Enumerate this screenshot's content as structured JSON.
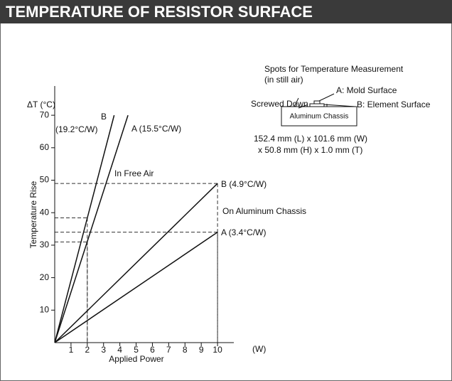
{
  "chart_data": {
    "type": "line",
    "title": "TEMPERATURE OF RESISTOR SURFACE",
    "x_label": "Applied Power",
    "x_unit": "(W)",
    "y_label": "Temperature Rise",
    "y_unit": "ΔT (°C)",
    "xlim": [
      0,
      11
    ],
    "ylim": [
      0,
      79
    ],
    "xticks": [
      1,
      2,
      3,
      4,
      5,
      6,
      7,
      8,
      9,
      10
    ],
    "yticks": [
      10,
      20,
      30,
      40,
      50,
      60,
      70
    ],
    "color": "#111111",
    "series": [
      {
        "label": [
          "B",
          "(19.2°C/W)"
        ],
        "x": [
          0,
          3.65
        ],
        "values": [
          0,
          70
        ]
      },
      {
        "label": [
          "A (15.5°C/W)"
        ],
        "x": [
          0,
          4.5
        ],
        "values": [
          0,
          70
        ]
      },
      {
        "label": [
          "B (4.9°C/W)"
        ],
        "x": [
          0,
          10
        ],
        "values": [
          0,
          49
        ]
      },
      {
        "label": [
          "A (3.4°C/W)"
        ],
        "x": [
          0,
          10
        ],
        "values": [
          0,
          34
        ]
      }
    ],
    "annotations": [
      "In Free Air",
      "On Aluminum Chassis"
    ],
    "guide_points": [
      {
        "x": 2,
        "y": 38.4
      },
      {
        "x": 2,
        "y": 31
      },
      {
        "x": 10,
        "y": 49
      },
      {
        "x": 10,
        "y": 34
      }
    ]
  },
  "inset": {
    "heading": [
      "Spots for Temperature Measurement",
      "(in still air)"
    ],
    "mold": "A: Mold Surface",
    "screwed": "Screwed Down",
    "element": "B: Element Surface",
    "chassis": "Aluminum Chassis",
    "dimensions": [
      "152.4 mm (L) x 101.6 mm (W)",
      "x 50.8 mm (H) x 1.0 mm (T)"
    ]
  }
}
